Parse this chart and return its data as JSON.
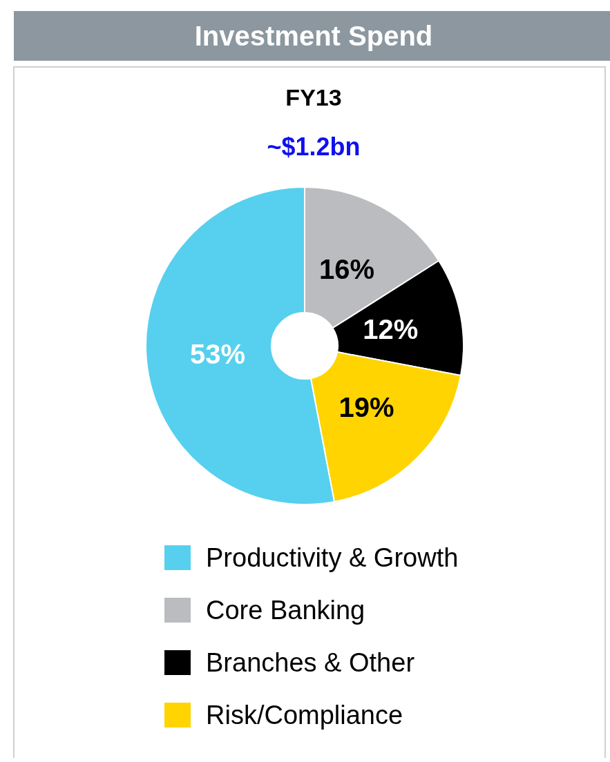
{
  "chart_data": {
    "type": "donut",
    "title": "Investment Spend",
    "subtitle": "FY13",
    "annotations": [
      "~$1.2bn"
    ],
    "categories": [
      "Productivity & Growth",
      "Core Banking",
      "Branches & Other",
      "Risk/Compliance"
    ],
    "values": [
      53,
      16,
      12,
      19
    ],
    "colors": [
      "#56d0ee",
      "#bbbcc0",
      "#000000",
      "#ffd400"
    ],
    "value_labels": [
      "53%",
      "16%",
      "12%",
      "19%"
    ],
    "legend": "bottom"
  }
}
